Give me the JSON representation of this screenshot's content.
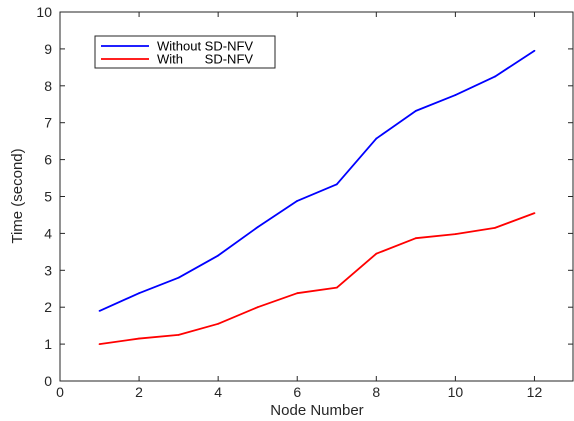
{
  "chart_data": {
    "type": "line",
    "title": "",
    "xlabel": "Node Number",
    "ylabel": "Time (second)",
    "xlim": [
      0,
      13
    ],
    "ylim": [
      0,
      10
    ],
    "xticks": [
      0,
      2,
      4,
      6,
      8,
      10,
      12
    ],
    "yticks": [
      0,
      1,
      2,
      3,
      4,
      5,
      6,
      7,
      8,
      9,
      10
    ],
    "grid": false,
    "legend_position": "top-left",
    "x": [
      1,
      2,
      3,
      4,
      5,
      6,
      7,
      8,
      9,
      10,
      11,
      12
    ],
    "series": [
      {
        "name": "Without SD-NFV",
        "color": "#0000ff",
        "values": [
          1.9,
          2.38,
          2.8,
          3.4,
          4.17,
          4.88,
          5.33,
          6.57,
          7.32,
          7.75,
          8.25,
          8.95
        ]
      },
      {
        "name": "With      SD-NFV",
        "color": "#ff0000",
        "values": [
          1.0,
          1.15,
          1.25,
          1.55,
          2.0,
          2.38,
          2.53,
          3.45,
          3.87,
          3.98,
          4.15,
          4.55
        ]
      }
    ]
  }
}
